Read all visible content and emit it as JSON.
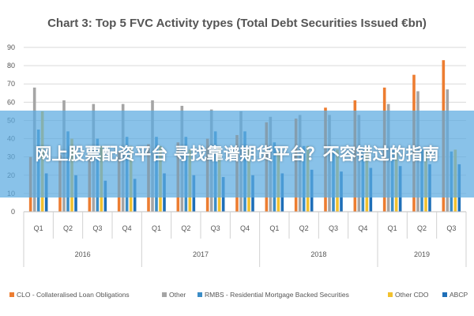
{
  "banner": {
    "text": "网上股票配资平台 寻找靠谱期货平台？不容错过的指南"
  },
  "chart_data": {
    "type": "bar",
    "title": "Chart 3: Top 5 FVC Activity types (Total Debt Securities Issued €bn)",
    "xlabel": "",
    "ylabel": "",
    "ylim": [
      0,
      90
    ],
    "yticks": [
      0,
      10,
      20,
      30,
      40,
      50,
      60,
      70,
      80,
      90
    ],
    "grid": true,
    "legend_position": "bottom",
    "categories": [
      "Q1",
      "Q2",
      "Q3",
      "Q4",
      "Q1",
      "Q2",
      "Q3",
      "Q4",
      "Q1",
      "Q2",
      "Q3",
      "Q4",
      "Q1",
      "Q2",
      "Q3"
    ],
    "groups": [
      {
        "label": "2016",
        "count": 4
      },
      {
        "label": "2017",
        "count": 4
      },
      {
        "label": "2018",
        "count": 4
      },
      {
        "label": "2019",
        "count": 3
      }
    ],
    "series": [
      {
        "name": "CLO - Collateralised Loan Obligations",
        "color": "#ED7D31",
        "values": [
          30,
          31,
          32,
          33,
          37,
          38,
          40,
          42,
          49,
          51,
          57,
          61,
          68,
          75,
          83
        ]
      },
      {
        "name": "Other",
        "color": "#A5A5A5",
        "values": [
          68,
          61,
          59,
          59,
          61,
          58,
          56,
          55,
          52,
          53,
          53,
          53,
          59,
          66,
          67
        ]
      },
      {
        "name": "RMBS - Residential Mortgage Backed Securities",
        "color": "#3C8DC6",
        "values": [
          45,
          44,
          40,
          41,
          41,
          41,
          44,
          44,
          38,
          36,
          34,
          34,
          35,
          34,
          33
        ]
      },
      {
        "name": "Other CDO",
        "color": "#F2C12E",
        "values": [
          55,
          40,
          36,
          36,
          36,
          34,
          35,
          34,
          33,
          36,
          34,
          34,
          33,
          34,
          34
        ]
      },
      {
        "name": "ABCP",
        "color": "#1F6FB8",
        "values": [
          21,
          20,
          17,
          18,
          21,
          20,
          19,
          20,
          21,
          23,
          22,
          24,
          25,
          26,
          26
        ]
      }
    ]
  }
}
